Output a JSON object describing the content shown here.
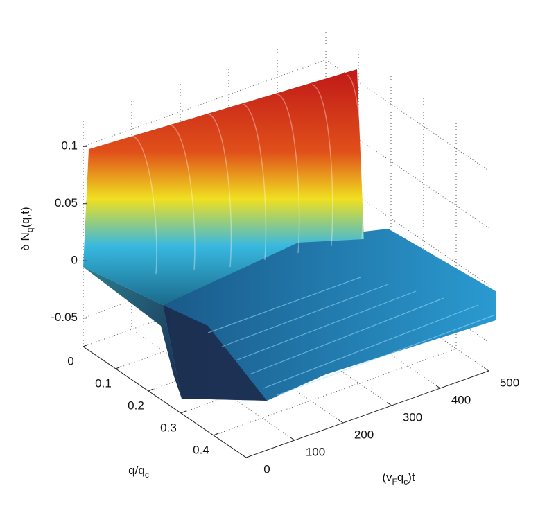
{
  "chart_data": {
    "type": "surface",
    "zlabel": [
      "δ N",
      "q",
      "(q,t)"
    ],
    "xlabel": [
      "q/q",
      "c"
    ],
    "ylabel": [
      "(v",
      "F",
      "q",
      "c",
      ")t"
    ],
    "xlim": [
      0,
      0.5
    ],
    "xticks": [
      0,
      0.1,
      0.2,
      0.3,
      0.4
    ],
    "ylim": [
      0,
      500
    ],
    "yticks": [
      0,
      100,
      200,
      300,
      400,
      500
    ],
    "zlim": [
      -0.075,
      0.125
    ],
    "zticks": [
      -0.05,
      0,
      0.05,
      0.1
    ],
    "grid": true
  }
}
